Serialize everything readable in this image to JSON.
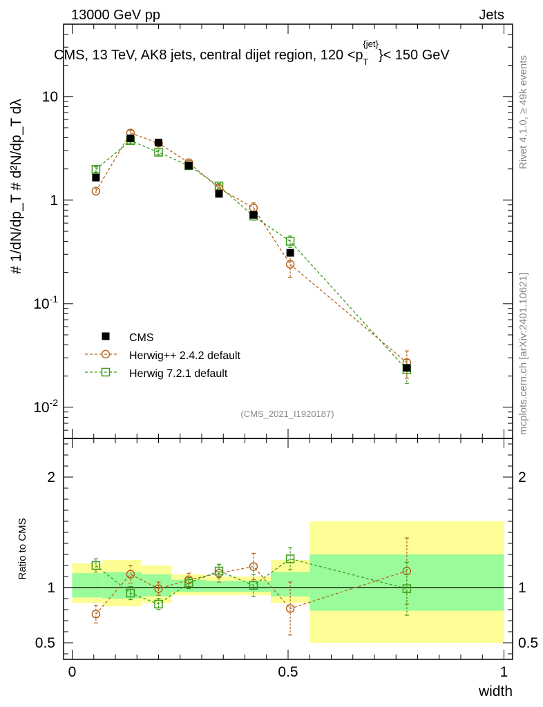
{
  "header": {
    "left": "13000 GeV pp",
    "right": "Jets",
    "title_main": "CMS, 13 TeV, AK8 jets, central dijet region, 120 <p",
    "title_sub": "T",
    "title_sup": "{jet}",
    "title_end": "}< 150 GeV",
    "ylabel_top": "# 1/dN/dp_T # d²N/dp_T dλ",
    "side_rivet": "Rivet 4.1.0, ≥ 49k events",
    "side_mcplots": "mcplots.cern.ch [arXiv:2401.10621]",
    "analysis_id": "(CMS_2021_I1920187)"
  },
  "chart_data": [
    {
      "type": "scatter",
      "panel": "main",
      "yscale": "log",
      "xlim": [
        -0.02,
        1.02
      ],
      "ylim": [
        0.005,
        50
      ],
      "yticks": [
        0.01,
        0.1,
        1,
        10
      ],
      "ytick_labels": [
        "10^-2",
        "10^-1",
        "1",
        "10"
      ],
      "xlabel": "width",
      "ylabel": "1/dN/dp_T d²N/dp_T dλ",
      "legend_position": "middle-left",
      "series": [
        {
          "name": "CMS",
          "color": "#000000",
          "marker": "filled-square",
          "x": [
            0.055,
            0.135,
            0.2,
            0.27,
            0.34,
            0.42,
            0.505,
            0.775
          ],
          "y": [
            1.65,
            3.95,
            3.6,
            2.15,
            1.15,
            0.72,
            0.31,
            0.024
          ]
        },
        {
          "name": "Herwig++ 2.4.2 default",
          "color": "#b5651d",
          "marker": "open-circle",
          "x": [
            0.055,
            0.135,
            0.2,
            0.27,
            0.34,
            0.42,
            0.505,
            0.775
          ],
          "y": [
            1.22,
            4.45,
            3.55,
            2.3,
            1.3,
            0.84,
            0.24,
            0.027
          ],
          "err": [
            0.1,
            0.25,
            0.2,
            0.12,
            0.1,
            0.1,
            0.06,
            0.008
          ]
        },
        {
          "name": "Herwig 7.2.1 default",
          "color": "#3a9a1a",
          "marker": "open-square",
          "x": [
            0.055,
            0.135,
            0.2,
            0.27,
            0.34,
            0.42,
            0.505,
            0.775
          ],
          "y": [
            1.98,
            3.75,
            2.9,
            2.15,
            1.37,
            0.7,
            0.4,
            0.023
          ],
          "err": [
            0.12,
            0.2,
            0.15,
            0.1,
            0.08,
            0.06,
            0.05,
            0.006
          ]
        }
      ]
    },
    {
      "type": "scatter",
      "panel": "ratio",
      "xlim": [
        -0.02,
        1.02
      ],
      "ylim": [
        0.35,
        2.35
      ],
      "yticks": [
        0.5,
        1,
        2
      ],
      "ytick_labels": [
        "0.5",
        "1",
        "2"
      ],
      "xticks": [
        0,
        0.5,
        1
      ],
      "xtick_labels": [
        "0",
        "0.5",
        "1"
      ],
      "xlabel": "width",
      "ylabel": "Ratio to CMS",
      "bands": {
        "edges": [
          0.0,
          0.07,
          0.16,
          0.23,
          0.31,
          0.38,
          0.46,
          0.55,
          1.0
        ],
        "yellow_low": [
          0.86,
          0.83,
          0.86,
          0.93,
          0.93,
          0.93,
          0.86,
          0.5
        ],
        "yellow_high": [
          1.22,
          1.25,
          1.2,
          1.12,
          1.1,
          1.1,
          1.25,
          1.6
        ],
        "green_low": [
          0.91,
          0.9,
          0.92,
          0.96,
          0.96,
          0.96,
          0.92,
          0.79
        ],
        "green_high": [
          1.13,
          1.14,
          1.12,
          1.07,
          1.06,
          1.06,
          1.14,
          1.3
        ]
      },
      "series": [
        {
          "name": "Herwig++ 2.4.2 default",
          "color": "#b5651d",
          "marker": "open-circle",
          "x": [
            0.055,
            0.135,
            0.2,
            0.27,
            0.34,
            0.42,
            0.505,
            0.775
          ],
          "y": [
            0.76,
            1.12,
            0.99,
            1.07,
            1.13,
            1.19,
            0.81,
            1.15
          ],
          "err": [
            0.08,
            0.08,
            0.06,
            0.06,
            0.08,
            0.12,
            0.24,
            0.3
          ]
        },
        {
          "name": "Herwig 7.2.1 default",
          "color": "#3a9a1a",
          "marker": "open-square",
          "x": [
            0.055,
            0.135,
            0.2,
            0.27,
            0.34,
            0.42,
            0.505,
            0.775
          ],
          "y": [
            1.2,
            0.95,
            0.85,
            1.04,
            1.15,
            1.02,
            1.26,
            0.99
          ],
          "err": [
            0.06,
            0.06,
            0.05,
            0.05,
            0.06,
            0.1,
            0.1,
            0.24
          ]
        }
      ]
    }
  ]
}
